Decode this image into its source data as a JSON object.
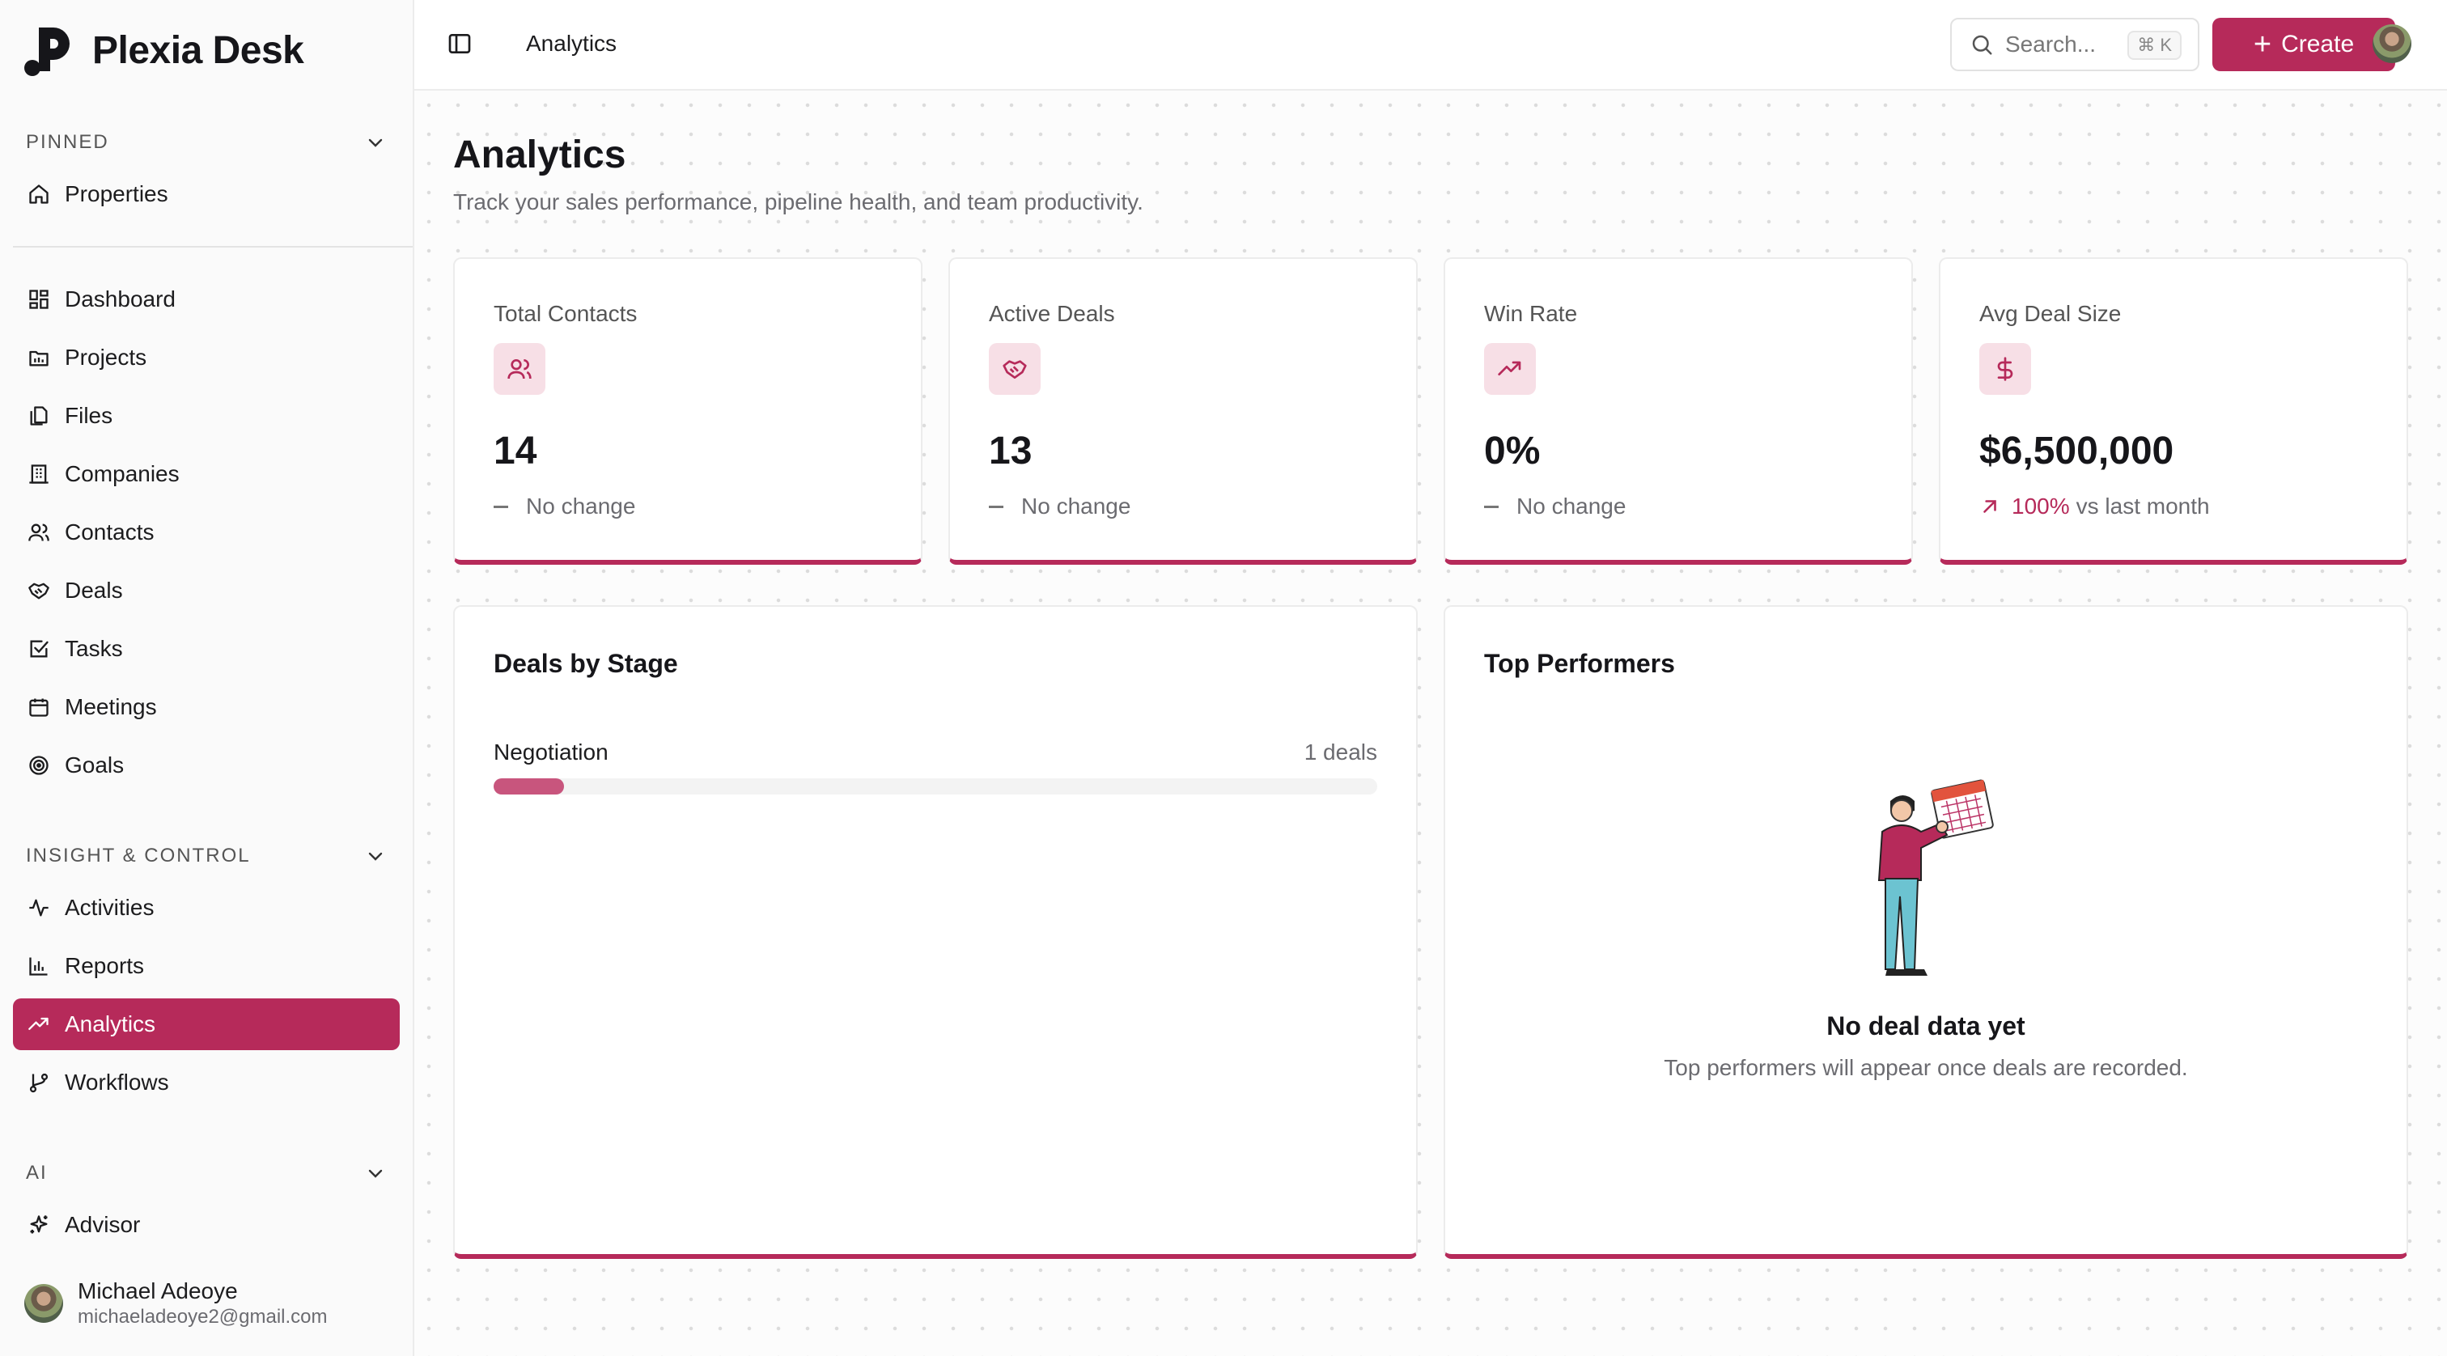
{
  "app": {
    "name": "Plexia Desk"
  },
  "sidebar": {
    "pinned": {
      "heading": "PINNED",
      "items": [
        {
          "label": "Properties",
          "icon": "home-icon"
        }
      ]
    },
    "main_items": [
      {
        "label": "Dashboard",
        "icon": "dashboard-icon"
      },
      {
        "label": "Projects",
        "icon": "folder-icon"
      },
      {
        "label": "Files",
        "icon": "files-icon"
      },
      {
        "label": "Companies",
        "icon": "building-icon"
      },
      {
        "label": "Contacts",
        "icon": "users-icon"
      },
      {
        "label": "Deals",
        "icon": "handshake-icon"
      },
      {
        "label": "Tasks",
        "icon": "checkbox-icon"
      },
      {
        "label": "Meetings",
        "icon": "calendar-icon"
      },
      {
        "label": "Goals",
        "icon": "target-icon"
      }
    ],
    "insight": {
      "heading": "INSIGHT & CONTROL",
      "items": [
        {
          "label": "Activities",
          "icon": "activity-icon"
        },
        {
          "label": "Reports",
          "icon": "bar-chart-icon"
        },
        {
          "label": "Analytics",
          "icon": "trending-up-icon",
          "active": true
        },
        {
          "label": "Workflows",
          "icon": "git-branch-icon"
        }
      ]
    },
    "ai": {
      "heading": "AI",
      "items": [
        {
          "label": "Advisor",
          "icon": "sparkles-icon"
        }
      ]
    },
    "user": {
      "name": "Michael Adeoye",
      "email": "michaeladeoye2@gmail.com"
    }
  },
  "header": {
    "breadcrumb": "Analytics",
    "search_placeholder": "Search...",
    "search_shortcut": "⌘ K",
    "create_label": "Create"
  },
  "page": {
    "title": "Analytics",
    "subtitle": "Track your sales performance, pipeline health, and team productivity."
  },
  "stats": [
    {
      "label": "Total Contacts",
      "value": "14",
      "change": "No change",
      "icon": "users-icon"
    },
    {
      "label": "Active Deals",
      "value": "13",
      "change": "No change",
      "icon": "handshake-icon"
    },
    {
      "label": "Win Rate",
      "value": "0%",
      "change": "No change",
      "icon": "trending-up-icon"
    },
    {
      "label": "Avg Deal Size",
      "value": "$6,500,000",
      "change_pct": "100%",
      "change_text": "vs last month",
      "icon": "dollar-icon"
    }
  ],
  "deals_by_stage": {
    "title": "Deals by Stage",
    "stages": [
      {
        "name": "Negotiation",
        "count_label": "1 deals",
        "fraction": 0.08
      }
    ]
  },
  "top_performers": {
    "title": "Top Performers",
    "empty_title": "No deal data yet",
    "empty_subtitle": "Top performers will appear once deals are recorded."
  },
  "colors": {
    "accent": "#b62a5a",
    "accent_soft": "#f7dfe6",
    "bar": "#c8557d"
  }
}
